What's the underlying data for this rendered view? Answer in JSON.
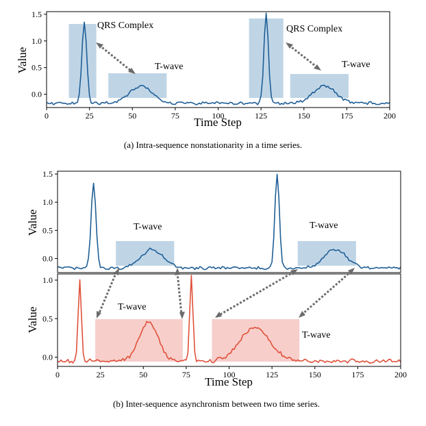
{
  "colors": {
    "blue": "#1f5e96",
    "red": "#e0503a",
    "blue_box": "#9dbfd9",
    "red_box": "#f3b3ad",
    "arrow": "#6b6b6b"
  },
  "chart_data": [
    {
      "type": "line",
      "id": "a",
      "xlabel": "Time Step",
      "ylabel": "Value",
      "xlim": [
        0,
        200
      ],
      "ylim": [
        -0.25,
        1.55
      ],
      "xticks": [
        0,
        25,
        50,
        75,
        100,
        125,
        150,
        175,
        200
      ],
      "yticks": [
        0.0,
        0.5,
        1.0,
        1.5
      ],
      "series_shape": {
        "baseline": -0.17,
        "peaks": [
          {
            "center": 22,
            "amplitude": 1.52,
            "width": 1.4
          },
          {
            "center": 128,
            "amplitude": 1.68,
            "width": 1.3
          }
        ],
        "waves": [
          {
            "center": 55,
            "amplitude": 0.33,
            "width": 6.5
          },
          {
            "center": 162,
            "amplitude": 0.33,
            "width": 6.5
          }
        ]
      },
      "highlight_boxes": [
        {
          "x0": 13,
          "x1": 29
        },
        {
          "x0": 36,
          "x1": 70
        },
        {
          "x0": 118,
          "x1": 138
        },
        {
          "x0": 142,
          "x1": 176
        }
      ],
      "annotations": [
        "QRS Complex",
        "T-wave",
        "QRS Complex",
        "T-wave"
      ],
      "caption": "(a) Intra-sequence nonstationarity in a time series."
    },
    {
      "type": "line",
      "id": "b_top",
      "ylabel": "Value",
      "xlim": [
        0,
        200
      ],
      "ylim": [
        -0.25,
        1.55
      ],
      "yticks": [
        0.0,
        0.5,
        1.0,
        1.5
      ],
      "series_shape": {
        "baseline": -0.17,
        "peaks": [
          {
            "center": 21,
            "amplitude": 1.52,
            "width": 1.4
          },
          {
            "center": 128,
            "amplitude": 1.68,
            "width": 1.3
          }
        ],
        "waves": [
          {
            "center": 55,
            "amplitude": 0.33,
            "width": 6.5
          },
          {
            "center": 162,
            "amplitude": 0.33,
            "width": 6.5
          }
        ]
      },
      "highlight_boxes": [
        {
          "x0": 34,
          "x1": 68
        },
        {
          "x0": 140,
          "x1": 174
        }
      ],
      "annotations": [
        "T-wave",
        "T-wave"
      ]
    },
    {
      "type": "line",
      "id": "b_bottom",
      "xlabel": "Time Step",
      "ylabel": "Value",
      "xlim": [
        0,
        200
      ],
      "ylim": [
        -0.12,
        1.08
      ],
      "xticks": [
        0,
        25,
        50,
        75,
        100,
        125,
        150,
        175,
        200
      ],
      "yticks": [
        0.0,
        0.5,
        1.0
      ],
      "series_shape": {
        "baseline": -0.05,
        "peaks": [
          {
            "center": 13,
            "amplitude": 1.07,
            "width": 0.9
          },
          {
            "center": 78,
            "amplitude": 1.14,
            "width": 0.9
          }
        ],
        "waves": [
          {
            "center": 53,
            "amplitude": 0.5,
            "width": 5.5
          },
          {
            "center": 115,
            "amplitude": 0.44,
            "width": 8.5
          }
        ]
      },
      "highlight_boxes": [
        {
          "x0": 22,
          "x1": 73
        },
        {
          "x0": 90,
          "x1": 141
        }
      ],
      "annotations": [
        "T-wave",
        "T-wave"
      ],
      "caption": "(b) Inter-sequence asynchronism between two time series."
    }
  ]
}
